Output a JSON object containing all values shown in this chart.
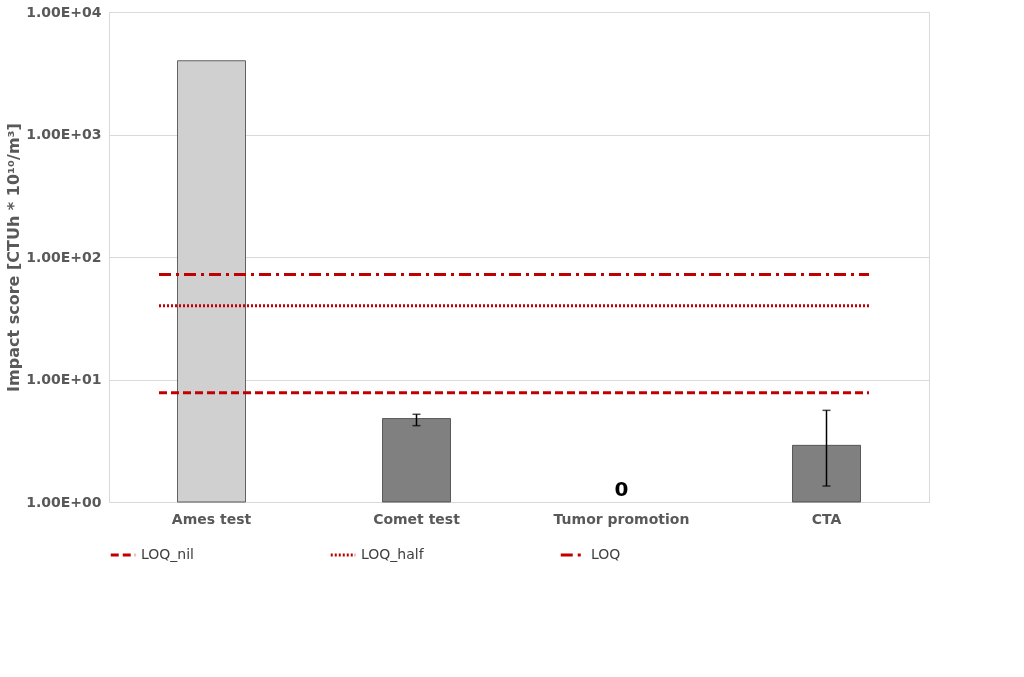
{
  "chart_data": {
    "type": "bar",
    "ylabel": "Impact score [CTUh * 10¹⁰/m³]",
    "categories": [
      "Ames test",
      "Comet test",
      "Tumor promotion",
      "CTA"
    ],
    "values": [
      4000,
      4.8,
      null,
      2.9
    ],
    "colors": [
      "#d0d0d0",
      "#808080",
      "#808080",
      "#808080"
    ],
    "errors": [
      null,
      [
        4.2,
        5.2
      ],
      null,
      [
        1.35,
        5.6
      ]
    ],
    "log": "y",
    "ylim": [
      1,
      10000
    ],
    "yticks": [
      {
        "value": 1,
        "label": "1.00E+00"
      },
      {
        "value": 10,
        "label": "1.00E+01"
      },
      {
        "value": 100,
        "label": "1.00E+02"
      },
      {
        "value": 1000,
        "label": "1.00E+03"
      },
      {
        "value": 10000,
        "label": "1.00E+04"
      }
    ],
    "grid": "y",
    "legend": "bottom",
    "ref_lines": [
      {
        "axis": "y",
        "value": 7.8,
        "label": "LOQ_nil",
        "color": "#c00000",
        "line_style": "dashed"
      },
      {
        "axis": "y",
        "value": 40,
        "label": "LOQ_half",
        "color": "#c00000",
        "line_style": "dotted"
      },
      {
        "axis": "y",
        "value": 72,
        "label": "LOQ",
        "color": "#c00000",
        "line_style": "dashdot"
      }
    ],
    "annotations": [
      "0"
    ]
  }
}
